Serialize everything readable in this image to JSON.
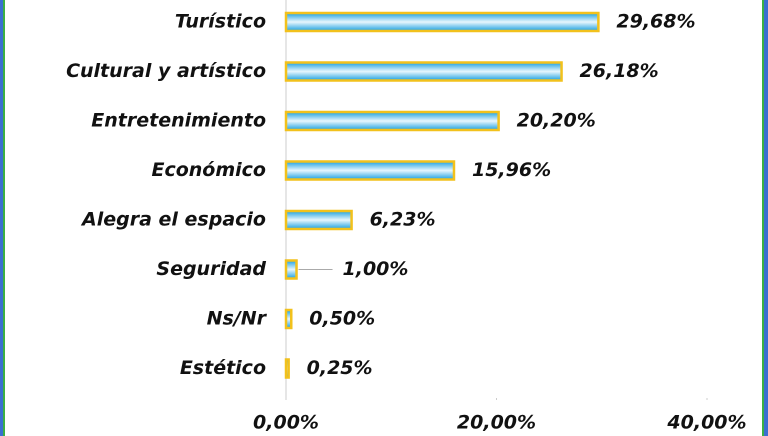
{
  "chart_data": {
    "type": "barh",
    "categories": [
      "Turístico",
      "Cultural y artístico",
      "Entretenimiento",
      "Económico",
      "Alegra el espacio",
      "Seguridad",
      "Ns/Nr",
      "Estético"
    ],
    "values": [
      29.68,
      26.18,
      20.2,
      15.96,
      6.23,
      1.0,
      0.5,
      0.25
    ],
    "value_labels": [
      "29,68%",
      "26,18%",
      "20,20%",
      "15,96%",
      "6,23%",
      "1,00%",
      "0,50%",
      "0,25%"
    ],
    "color": "#29a8e0",
    "xlim": [
      0,
      40
    ],
    "xticks": [
      {
        "value": 0,
        "label": "0,00%"
      },
      {
        "value": 20,
        "label": "20,00%"
      },
      {
        "value": 40,
        "label": "40,00%"
      }
    ]
  }
}
